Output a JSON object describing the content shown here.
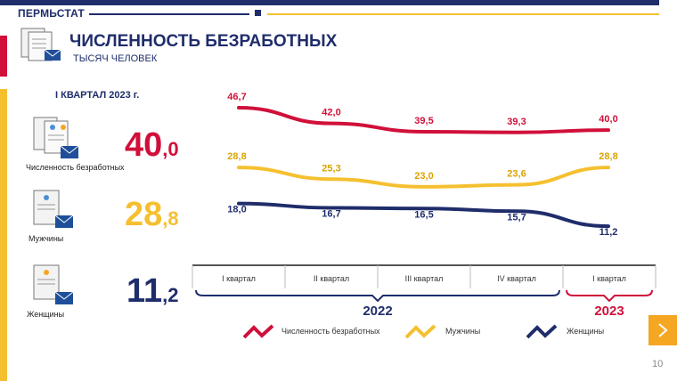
{
  "header": {
    "org": "ПЕРМЬСТАТ",
    "title": "ЧИСЛЕННОСТЬ БЕЗРАБОТНЫХ",
    "subtitle": "ТЫСЯЧ ЧЕЛОВЕК"
  },
  "summary": {
    "period": "I КВАРТАЛ 2023  г.",
    "items": [
      {
        "label": "Численность безработных",
        "int": "40",
        "frac": ",0",
        "color": "#d0103a"
      },
      {
        "label": "Мужчины",
        "int": "28",
        "frac": ",8",
        "color": "#f5c030"
      },
      {
        "label": "Женщины",
        "int": "11",
        "frac": ",2",
        "color": "#1f2d6b"
      }
    ]
  },
  "chart_data": {
    "type": "line",
    "categories": [
      "I квартал",
      "II квартал",
      "III квартал",
      "IV квартал",
      "I квартал"
    ],
    "years": [
      {
        "label": "2022",
        "span": [
          0,
          3
        ],
        "color": "#1f2d6b"
      },
      {
        "label": "2023",
        "span": [
          4,
          4
        ],
        "color": "#d0103a"
      }
    ],
    "series": [
      {
        "name": "Численность  безработных",
        "values": [
          46.7,
          42.0,
          39.5,
          39.3,
          40.0
        ],
        "labels": [
          "46,7",
          "42,0",
          "39,5",
          "39,3",
          "40,0"
        ],
        "color": "#d0103a"
      },
      {
        "name": "Мужчины",
        "values": [
          28.8,
          25.3,
          23.0,
          23.6,
          28.8
        ],
        "labels": [
          "28,8",
          "25,3",
          "23,0",
          "23,6",
          "28,8"
        ],
        "color": "#f5c030"
      },
      {
        "name": "Женщины",
        "values": [
          18.0,
          16.7,
          16.5,
          15.7,
          11.2
        ],
        "labels": [
          "18,0",
          "16,7",
          "16,5",
          "15,7",
          "11,2"
        ],
        "color": "#1f2d6b"
      }
    ]
  },
  "page_number": "10"
}
